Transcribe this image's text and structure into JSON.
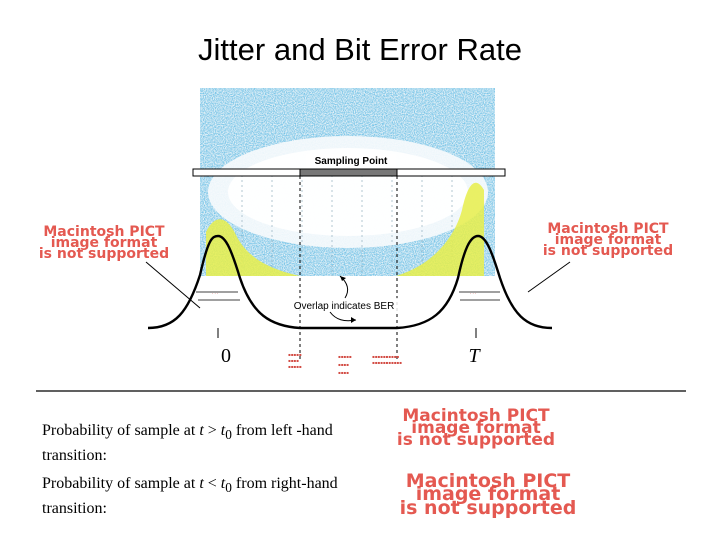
{
  "title": "Jitter and Bit Error Rate",
  "diagram": {
    "sampling_point_label": "Sampling Point",
    "overlap_label": "Overlap indicates BER",
    "tick_zero": "0",
    "tick_T": "T",
    "pict_placeholder": [
      "Macintosh PICT",
      "image format",
      "is not supported"
    ],
    "colors": {
      "eye_blue": "#2f8fc8",
      "eye_cyan": "#5fc4e0",
      "overlap_yellow": "#e8ee4a",
      "pict_red": "#e2483f"
    }
  },
  "probabilities": {
    "left": {
      "text_a": "Probability of sample at ",
      "t": "t",
      "op": " > ",
      "t0": "t",
      "sub": "0",
      "text_b": " from left -hand transition:"
    },
    "right": {
      "text_a": "Probability of sample at ",
      "t": "t",
      "op": " < ",
      "t0": "t",
      "sub": "0",
      "text_b": " from right-hand transition:"
    }
  }
}
